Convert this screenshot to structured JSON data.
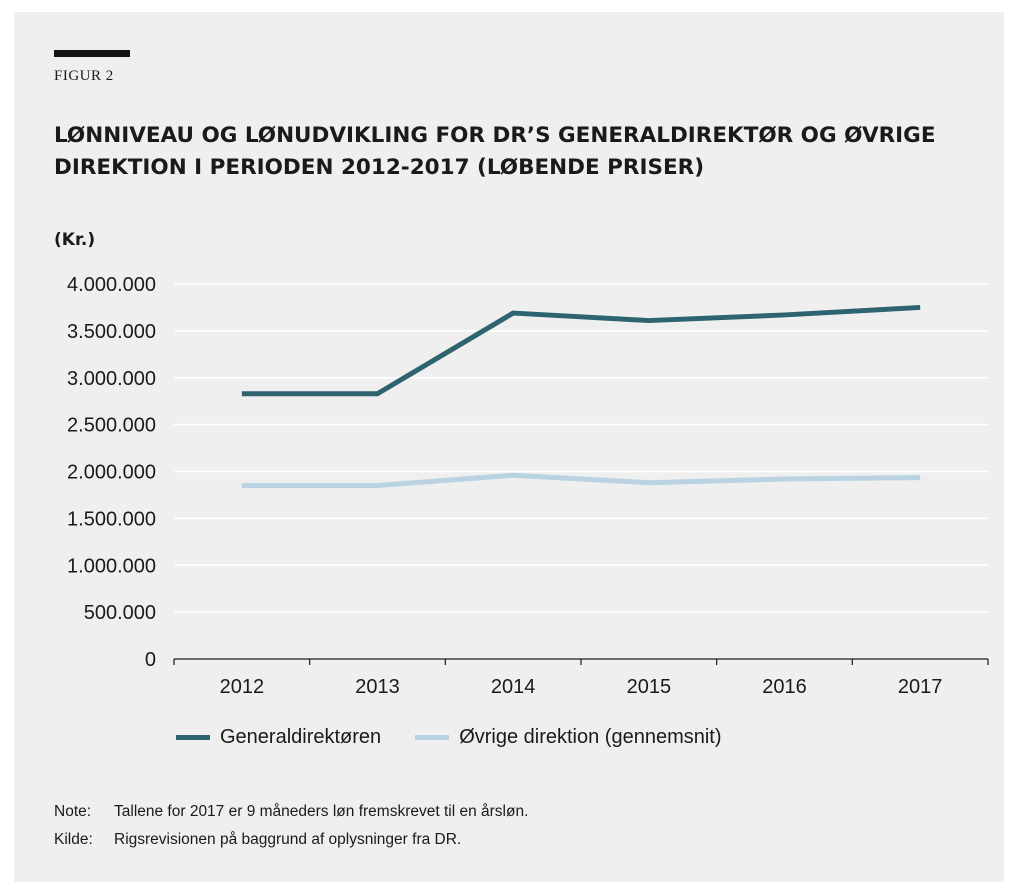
{
  "figure_label": "FIGUR 2",
  "title": "LØNNIVEAU OG LØNUDVIKLING FOR DR’S GENERALDIREKTØR OG ØVRIGE DIREKTION I PERIODEN 2012-2017 (LØBENDE PRISER)",
  "unit_label": "(Kr.)",
  "colors": {
    "background": "#efefef",
    "series1": "#2e6470",
    "series2": "#b9d3e2"
  },
  "chart_data": {
    "type": "line",
    "title": "LØNNIVEAU OG LØNUDVIKLING FOR DR’S GENERALDIREKTØR OG ØVRIGE DIREKTION I PERIODEN 2012-2017 (LØBENDE PRISER)",
    "ylabel": "(Kr.)",
    "xlabel": "",
    "categories": [
      "2012",
      "2013",
      "2014",
      "2015",
      "2016",
      "2017"
    ],
    "ylim": [
      0,
      4000000
    ],
    "yticks": [
      0,
      500000,
      1000000,
      1500000,
      2000000,
      2500000,
      3000000,
      3500000,
      4000000
    ],
    "ytick_labels": [
      "0",
      "500.000",
      "1.000.000",
      "1.500.000",
      "2.000.000",
      "2.500.000",
      "3.000.000",
      "3.500.000",
      "4.000.000"
    ],
    "grid": true,
    "legend_position": "bottom",
    "series": [
      {
        "name": "Generaldirektøren",
        "color": "#2e6470",
        "values": [
          2830000,
          2830000,
          3690000,
          3610000,
          3670000,
          3750000
        ]
      },
      {
        "name": "Øvrige direktion (gennemsnit)",
        "color": "#b9d3e2",
        "values": [
          1850000,
          1850000,
          1960000,
          1880000,
          1920000,
          1935000
        ]
      }
    ]
  },
  "notes": {
    "note_label": "Note:",
    "note_text": "Tallene for 2017 er 9 måneders løn fremskrevet til en årsløn.",
    "source_label": "Kilde:",
    "source_text": "Rigsrevisionen på baggrund af oplysninger fra DR."
  }
}
